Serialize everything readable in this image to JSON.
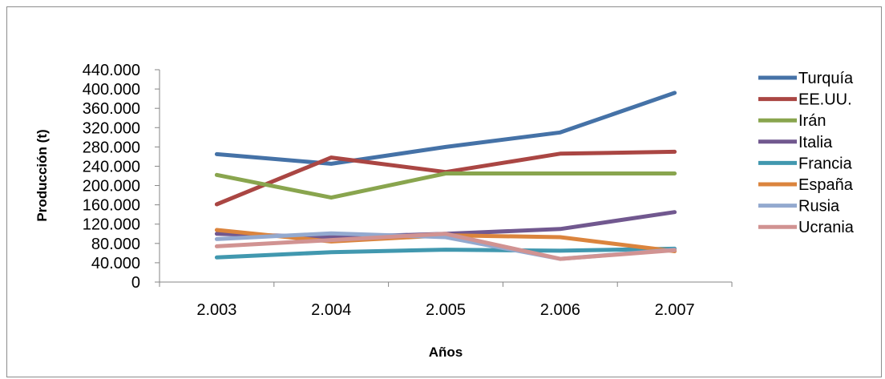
{
  "chart_data": {
    "type": "line",
    "title": "",
    "xlabel": "Años",
    "ylabel": "Producción (t)",
    "categories": [
      "2.003",
      "2.004",
      "2.005",
      "2.006",
      "2.007"
    ],
    "y_ticks": [
      "0",
      "40.000",
      "80.000",
      "120.000",
      "160.000",
      "200.000",
      "240.000",
      "280.000",
      "320.000",
      "360.000",
      "400.000",
      "440.000"
    ],
    "ylim": [
      0,
      440000
    ],
    "grid": false,
    "legend_position": "right",
    "series": [
      {
        "name": "Turquía",
        "color": "#4572a7",
        "values": [
          265000,
          245000,
          280000,
          310000,
          392000
        ]
      },
      {
        "name": "EE.UU.",
        "color": "#aa4643",
        "values": [
          161000,
          258000,
          228000,
          266000,
          270000
        ]
      },
      {
        "name": "Irán",
        "color": "#89a54e",
        "values": [
          222000,
          175000,
          225000,
          225000,
          225000
        ]
      },
      {
        "name": "Italia",
        "color": "#71588f",
        "values": [
          100000,
          93000,
          100000,
          110000,
          145000
        ]
      },
      {
        "name": "Francia",
        "color": "#4198af",
        "values": [
          51000,
          62000,
          67000,
          65000,
          69000
        ]
      },
      {
        "name": "España",
        "color": "#db843d",
        "values": [
          108000,
          84000,
          97000,
          93000,
          64000
        ]
      },
      {
        "name": "Rusia",
        "color": "#93a9cf",
        "values": [
          89000,
          101000,
          93000,
          48000,
          67000
        ]
      },
      {
        "name": "Ucrania",
        "color": "#d19392",
        "values": [
          74000,
          87000,
          100000,
          48000,
          66000
        ]
      }
    ]
  }
}
